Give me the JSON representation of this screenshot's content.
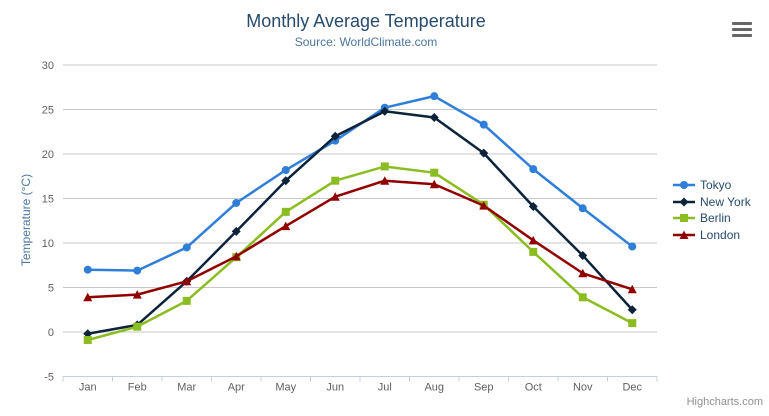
{
  "chart_data": {
    "type": "line",
    "title": "Monthly Average Temperature",
    "subtitle": "Source: WorldClimate.com",
    "xlabel": "",
    "ylabel": "Temperature (°C)",
    "categories": [
      "Jan",
      "Feb",
      "Mar",
      "Apr",
      "May",
      "Jun",
      "Jul",
      "Aug",
      "Sep",
      "Oct",
      "Nov",
      "Dec"
    ],
    "ylim": [
      -5,
      30
    ],
    "ytick_step": 5,
    "yticks": [
      -5,
      0,
      5,
      10,
      15,
      20,
      25,
      30
    ],
    "grid": true,
    "legend_position": "right",
    "series": [
      {
        "name": "Tokyo",
        "color": "#2f7ed8",
        "marker": "circle",
        "values": [
          7.0,
          6.9,
          9.5,
          14.5,
          18.2,
          21.5,
          25.2,
          26.5,
          23.3,
          18.3,
          13.9,
          9.6
        ]
      },
      {
        "name": "New York",
        "color": "#0d233a",
        "marker": "diamond",
        "values": [
          -0.2,
          0.8,
          5.7,
          11.3,
          17.0,
          22.0,
          24.8,
          24.1,
          20.1,
          14.1,
          8.6,
          2.5
        ]
      },
      {
        "name": "Berlin",
        "color": "#8bbc21",
        "marker": "square",
        "values": [
          -0.9,
          0.6,
          3.5,
          8.4,
          13.5,
          17.0,
          18.6,
          17.9,
          14.3,
          9.0,
          3.9,
          1.0
        ]
      },
      {
        "name": "London",
        "color": "#910000",
        "marker": "triangle",
        "values": [
          3.9,
          4.2,
          5.7,
          8.5,
          11.9,
          15.2,
          17.0,
          16.6,
          14.2,
          10.3,
          6.6,
          4.8
        ]
      }
    ]
  },
  "credits_label": "Highcharts.com",
  "menu_icon": "hamburger-icon",
  "colors": {
    "grid": "#c8c8c8",
    "axis_line": "#c0d0e0",
    "tick": "#c0d0e0",
    "axis_label": "#606060",
    "title": "#274b6d",
    "subtitle": "#4d759e",
    "legend_label": "#274b6d",
    "credits": "#909090",
    "menu_icon": "#666666"
  }
}
